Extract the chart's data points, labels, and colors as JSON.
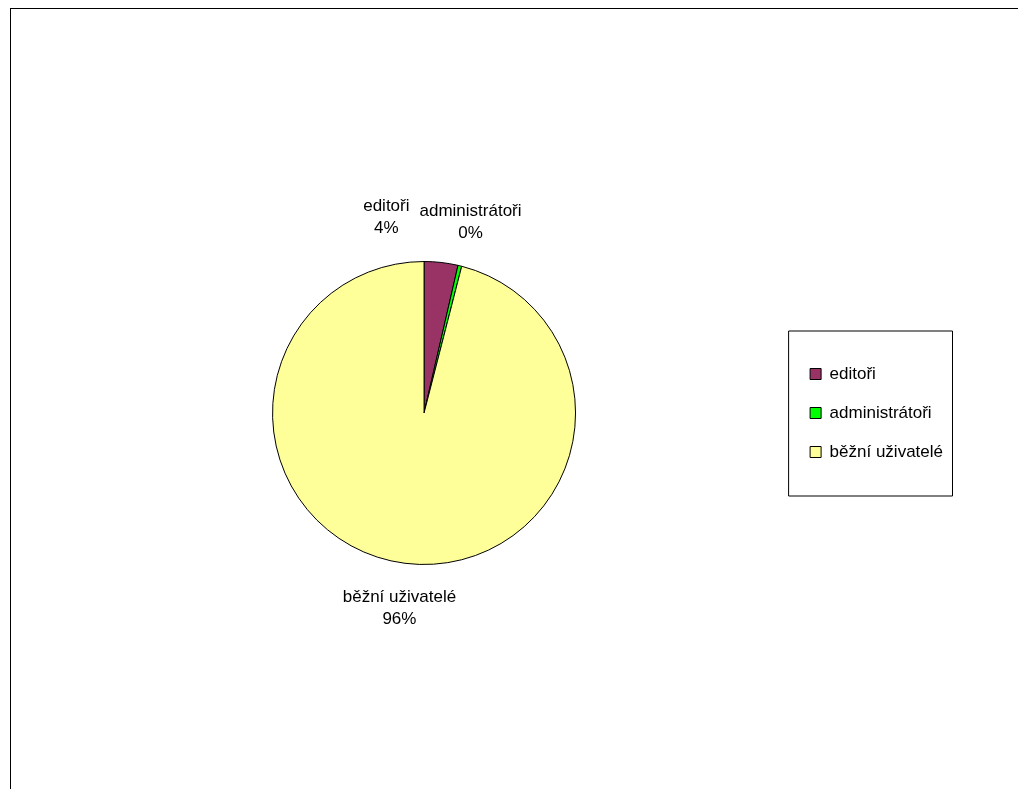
{
  "chart_data": {
    "type": "pie",
    "categories": [
      "editoři",
      "administrátoři",
      "běžní uživatelé"
    ],
    "values": [
      3.6,
      0.4,
      96.0
    ],
    "value_labels": [
      "4%",
      "0%",
      "96%"
    ],
    "colors": [
      "#993366",
      "#00ff00",
      "#ffff99"
    ],
    "legend": "right"
  }
}
